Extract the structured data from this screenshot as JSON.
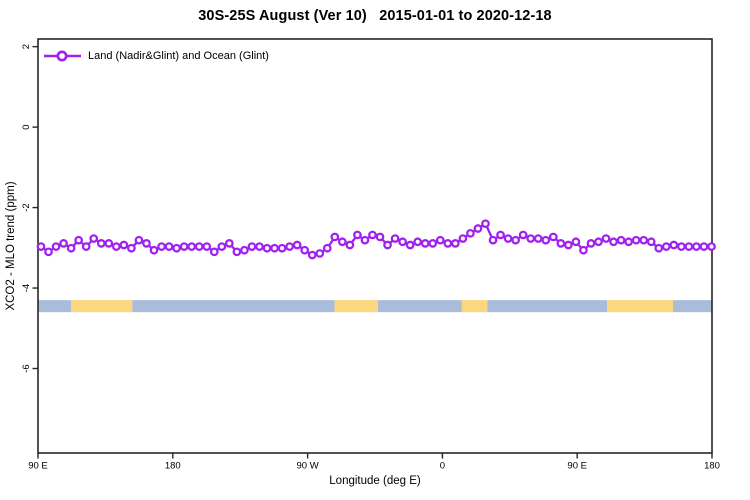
{
  "title": "30S-25S August (Ver 10)   2015-01-01 to 2020-12-18",
  "colors": {
    "series": "#A020F0",
    "marker_fill": "#FFFFFF",
    "ocean_band": "#A9BDDB",
    "land_band": "#FBD87E",
    "frame": "#262626",
    "tick_text": "#000000"
  },
  "chart_data": {
    "type": "line",
    "title": "30S-25S August (Ver 10)   2015-01-01 to 2020-12-18",
    "xlabel": "Longitude (deg E)",
    "ylabel": "XCO2 - MLO trend (ppm)",
    "legend_position": "top-left-inside",
    "grid": false,
    "xlim": [
      90,
      540
    ],
    "ylim": [
      -8.1,
      2.19
    ],
    "x_axis_wraps_longitude": "axis runs 90E -> 180 -> 90W -> 0 -> 90E -> 180",
    "x_ticks": [
      {
        "pos": 90,
        "label": "90 E"
      },
      {
        "pos": 180,
        "label": "180"
      },
      {
        "pos": 270,
        "label": "90 W"
      },
      {
        "pos": 360,
        "label": "0"
      },
      {
        "pos": 450,
        "label": "90 E"
      },
      {
        "pos": 540,
        "label": "180"
      }
    ],
    "y_ticks": [
      {
        "pos": 2,
        "label": "2"
      },
      {
        "pos": 0,
        "label": "0"
      },
      {
        "pos": -2,
        "label": "-2"
      },
      {
        "pos": -4,
        "label": "-4"
      },
      {
        "pos": -6,
        "label": "-6"
      }
    ],
    "x_start": 92,
    "x_step": 5.03,
    "series": [
      {
        "name": "Land (Nadir&Glint) and Ocean (Glint)",
        "color": "#A020F0",
        "marker": "open-circle",
        "values": [
          -2.97,
          -3.1,
          -2.97,
          -2.89,
          -3.01,
          -2.81,
          -2.97,
          -2.77,
          -2.89,
          -2.89,
          -2.97,
          -2.93,
          -3.01,
          -2.81,
          -2.89,
          -3.06,
          -2.97,
          -2.97,
          -3.01,
          -2.97,
          -2.97,
          -2.97,
          -2.97,
          -3.1,
          -2.97,
          -2.89,
          -3.1,
          -3.06,
          -2.97,
          -2.97,
          -3.01,
          -3.01,
          -3.01,
          -2.97,
          -2.93,
          -3.06,
          -3.18,
          -3.14,
          -3.01,
          -2.73,
          -2.85,
          -2.93,
          -2.68,
          -2.81,
          -2.68,
          -2.73,
          -2.93,
          -2.77,
          -2.85,
          -2.93,
          -2.85,
          -2.89,
          -2.89,
          -2.81,
          -2.89,
          -2.89,
          -2.77,
          -2.64,
          -2.52,
          -2.4,
          -2.81,
          -2.68,
          -2.77,
          -2.81,
          -2.68,
          -2.77,
          -2.77,
          -2.81,
          -2.73,
          -2.89,
          -2.93,
          -2.85,
          -3.06,
          -2.89,
          -2.85,
          -2.77,
          -2.85,
          -2.81,
          -2.85,
          -2.81,
          -2.81,
          -2.85,
          -3.01,
          -2.97,
          -2.93,
          -2.97,
          -2.97,
          -2.97,
          -2.97,
          -2.97
        ]
      }
    ],
    "band": {
      "description": "horizontal strip near y=-4.45: blue=ocean, yellow=land along longitude",
      "value_range": [
        -4.6,
        -4.3
      ],
      "segments": [
        {
          "surface": "ocean",
          "from": 90,
          "to": 112
        },
        {
          "surface": "land",
          "from": 112,
          "to": 153
        },
        {
          "surface": "ocean",
          "from": 153,
          "to": 288
        },
        {
          "surface": "land",
          "from": 288,
          "to": 317
        },
        {
          "surface": "ocean",
          "from": 317,
          "to": 373
        },
        {
          "surface": "land",
          "from": 373,
          "to": 390
        },
        {
          "surface": "ocean",
          "from": 390,
          "to": 470
        },
        {
          "surface": "land",
          "from": 470,
          "to": 514
        },
        {
          "surface": "ocean",
          "from": 514,
          "to": 540
        }
      ]
    }
  }
}
